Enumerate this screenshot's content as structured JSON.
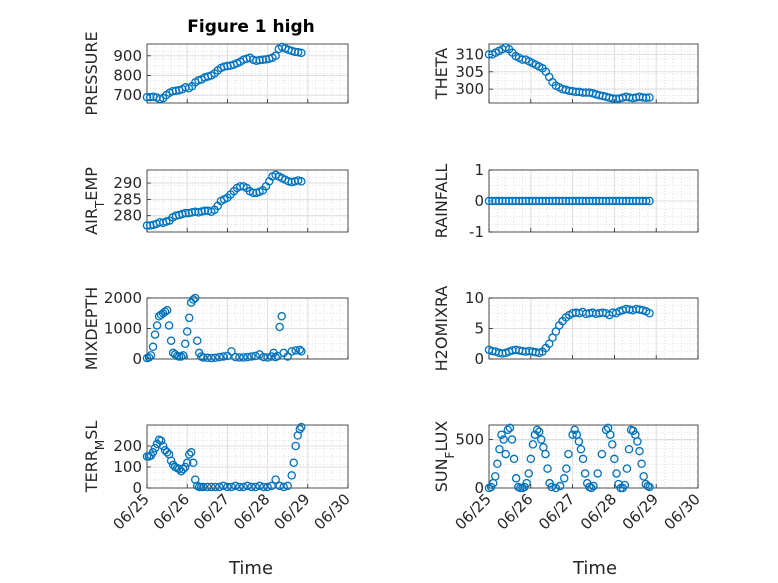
{
  "figure": {
    "title": "Figure 1 high",
    "xlabel": "Time"
  },
  "style": {
    "marker_color": "#0072BD",
    "grid_color": "#dfdfdf",
    "axis_color": "#262626"
  },
  "chart_data": [
    {
      "type": "scatter",
      "ylabel": "PRESSURE",
      "ylabel_sub": "",
      "ylim": [
        660,
        960
      ],
      "yticks": [
        700,
        800,
        900
      ],
      "xlim": [
        0,
        4
      ],
      "xticks": [
        "06/25",
        "06/26",
        "06/27",
        "06/28",
        "06/29",
        "06/30"
      ],
      "x": [
        0,
        0.08,
        0.16,
        0.24,
        0.32,
        0.4,
        0.48,
        0.56,
        0.64,
        0.72,
        0.8,
        0.88,
        0.96,
        1.04,
        1.12,
        1.2,
        1.28,
        1.36,
        1.44,
        1.52,
        1.6,
        1.68,
        1.76,
        1.84,
        1.92,
        2,
        2.08,
        2.16,
        2.24,
        2.32,
        2.4,
        2.48,
        2.56,
        2.64,
        2.72,
        2.8,
        2.88,
        2.96,
        3.04,
        3.12,
        3.2,
        3.28,
        3.36,
        3.44,
        3.52,
        3.6,
        3.68,
        3.76,
        3.84
      ],
      "y": [
        690,
        690,
        692,
        688,
        680,
        685,
        700,
        712,
        720,
        722,
        725,
        730,
        740,
        735,
        745,
        765,
        775,
        780,
        790,
        795,
        800,
        810,
        825,
        838,
        845,
        848,
        850,
        855,
        862,
        870,
        880,
        885,
        890,
        880,
        875,
        878,
        880,
        882,
        885,
        890,
        900,
        935,
        945,
        938,
        930,
        925,
        920,
        918,
        915
      ]
    },
    {
      "type": "scatter",
      "ylabel": "THETA",
      "ylabel_sub": "",
      "ylim": [
        296,
        313
      ],
      "yticks": [
        300,
        305,
        310
      ],
      "xlim": [
        0,
        4
      ],
      "xticks": [
        "06/25",
        "06/26",
        "06/27",
        "06/28",
        "06/29",
        "06/30"
      ],
      "x": [
        0,
        0.08,
        0.16,
        0.24,
        0.32,
        0.4,
        0.48,
        0.56,
        0.64,
        0.72,
        0.8,
        0.88,
        0.96,
        1.04,
        1.12,
        1.2,
        1.28,
        1.36,
        1.44,
        1.52,
        1.6,
        1.68,
        1.76,
        1.84,
        1.92,
        2,
        2.08,
        2.16,
        2.24,
        2.32,
        2.4,
        2.48,
        2.56,
        2.64,
        2.72,
        2.8,
        2.88,
        2.96,
        3.04,
        3.12,
        3.2,
        3.28,
        3.36,
        3.44,
        3.52,
        3.6,
        3.68,
        3.76,
        3.84
      ],
      "y": [
        310,
        310,
        310.5,
        311,
        311.5,
        312,
        311.5,
        310.5,
        309.5,
        309,
        308.5,
        308.5,
        308,
        307.5,
        307,
        306.5,
        306,
        305,
        303.5,
        302,
        301,
        300.5,
        300,
        299.8,
        299.5,
        299.4,
        299.2,
        299.2,
        299,
        299,
        299,
        298.8,
        298.5,
        298.2,
        298,
        297.8,
        297.5,
        297.3,
        297.2,
        297.3,
        297.5,
        297.8,
        297.6,
        297.4,
        297.6,
        297.8,
        297.6,
        297.5,
        297.6
      ]
    },
    {
      "type": "scatter",
      "ylabel": "AIR",
      "ylabel_sub": "T",
      "ylabel_suffix": "EMP",
      "ylim": [
        275,
        294
      ],
      "yticks": [
        280,
        285,
        290
      ],
      "xlim": [
        0,
        4
      ],
      "xticks": [
        "06/25",
        "06/26",
        "06/27",
        "06/28",
        "06/29",
        "06/30"
      ],
      "x": [
        0,
        0.08,
        0.16,
        0.24,
        0.32,
        0.4,
        0.48,
        0.56,
        0.64,
        0.72,
        0.8,
        0.88,
        0.96,
        1.04,
        1.12,
        1.2,
        1.28,
        1.36,
        1.44,
        1.52,
        1.6,
        1.68,
        1.76,
        1.84,
        1.92,
        2,
        2.08,
        2.16,
        2.24,
        2.32,
        2.4,
        2.48,
        2.56,
        2.64,
        2.72,
        2.8,
        2.88,
        2.96,
        3.04,
        3.12,
        3.2,
        3.28,
        3.36,
        3.44,
        3.52,
        3.6,
        3.68,
        3.76,
        3.84
      ],
      "y": [
        277,
        277,
        277.2,
        277.5,
        278,
        277.8,
        278.2,
        278.5,
        279.5,
        280,
        280.2,
        280.5,
        280.8,
        280.8,
        281,
        281.2,
        281,
        281.3,
        281.5,
        281.5,
        281.2,
        281.8,
        283,
        284.5,
        285,
        285.5,
        286.5,
        287.5,
        288.5,
        289,
        289,
        288.5,
        287.5,
        287,
        287,
        287.3,
        287.8,
        289,
        290.5,
        292,
        292.5,
        292,
        291.5,
        291,
        290.5,
        290.3,
        290.5,
        290.8,
        290.5
      ]
    },
    {
      "type": "scatter",
      "ylabel": "RAINFALL",
      "ylabel_sub": "",
      "ylim": [
        -1,
        1
      ],
      "yticks": [
        -1,
        0,
        1
      ],
      "xlim": [
        0,
        4
      ],
      "xticks": [
        "06/25",
        "06/26",
        "06/27",
        "06/28",
        "06/29",
        "06/30"
      ],
      "x": [
        0,
        0.08,
        0.16,
        0.24,
        0.32,
        0.4,
        0.48,
        0.56,
        0.64,
        0.72,
        0.8,
        0.88,
        0.96,
        1.04,
        1.12,
        1.2,
        1.28,
        1.36,
        1.44,
        1.52,
        1.6,
        1.68,
        1.76,
        1.84,
        1.92,
        2,
        2.08,
        2.16,
        2.24,
        2.32,
        2.4,
        2.48,
        2.56,
        2.64,
        2.72,
        2.8,
        2.88,
        2.96,
        3.04,
        3.12,
        3.2,
        3.28,
        3.36,
        3.44,
        3.52,
        3.6,
        3.68,
        3.76,
        3.84
      ],
      "y": [
        0,
        0,
        0,
        0,
        0,
        0,
        0,
        0,
        0,
        0,
        0,
        0,
        0,
        0,
        0,
        0,
        0,
        0,
        0,
        0,
        0,
        0,
        0,
        0,
        0,
        0,
        0,
        0,
        0,
        0,
        0,
        0,
        0,
        0,
        0,
        0,
        0,
        0,
        0,
        0,
        0,
        0,
        0,
        0,
        0,
        0,
        0,
        0,
        0
      ]
    },
    {
      "type": "scatter",
      "ylabel": "MIXDEPTH",
      "ylabel_sub": "",
      "ylim": [
        0,
        2000
      ],
      "yticks": [
        0,
        1000,
        2000
      ],
      "xlim": [
        0,
        4
      ],
      "xticks": [
        "06/25",
        "06/26",
        "06/27",
        "06/28",
        "06/29",
        "06/30"
      ],
      "x": [
        0,
        0.05,
        0.1,
        0.15,
        0.2,
        0.25,
        0.3,
        0.35,
        0.4,
        0.45,
        0.5,
        0.55,
        0.6,
        0.65,
        0.7,
        0.75,
        0.8,
        0.85,
        0.9,
        0.95,
        1,
        1.05,
        1.1,
        1.15,
        1.2,
        1.25,
        1.3,
        1.35,
        1.4,
        1.5,
        1.6,
        1.7,
        1.8,
        1.9,
        2,
        2.1,
        2.2,
        2.3,
        2.4,
        2.5,
        2.6,
        2.7,
        2.8,
        2.9,
        3,
        3.1,
        3.15,
        3.2,
        3.25,
        3.3,
        3.35,
        3.4,
        3.5,
        3.6,
        3.7,
        3.8,
        3.84
      ],
      "y": [
        30,
        50,
        120,
        400,
        800,
        1100,
        1400,
        1450,
        1500,
        1550,
        1600,
        1100,
        600,
        200,
        150,
        100,
        80,
        80,
        120,
        500,
        900,
        1350,
        1850,
        1950,
        2000,
        600,
        200,
        80,
        50,
        40,
        30,
        40,
        60,
        80,
        100,
        250,
        60,
        50,
        50,
        60,
        80,
        100,
        150,
        60,
        50,
        80,
        200,
        60,
        100,
        1050,
        1400,
        200,
        80,
        250,
        280,
        300,
        250
      ]
    },
    {
      "type": "scatter",
      "ylabel": "H2OMIXRA",
      "ylabel_sub": "",
      "ylim": [
        0,
        10
      ],
      "yticks": [
        0,
        5,
        10
      ],
      "xlim": [
        0,
        4
      ],
      "xticks": [
        "06/25",
        "06/26",
        "06/27",
        "06/28",
        "06/29",
        "06/30"
      ],
      "x": [
        0,
        0.08,
        0.16,
        0.24,
        0.32,
        0.4,
        0.48,
        0.56,
        0.64,
        0.72,
        0.8,
        0.88,
        0.96,
        1.04,
        1.12,
        1.2,
        1.28,
        1.36,
        1.44,
        1.52,
        1.6,
        1.68,
        1.76,
        1.84,
        1.92,
        2,
        2.08,
        2.16,
        2.24,
        2.32,
        2.4,
        2.48,
        2.56,
        2.64,
        2.72,
        2.8,
        2.88,
        2.96,
        3.04,
        3.12,
        3.2,
        3.28,
        3.36,
        3.44,
        3.52,
        3.6,
        3.68,
        3.76,
        3.84
      ],
      "y": [
        1.5,
        1.3,
        1.2,
        1,
        0.9,
        1,
        1.2,
        1.4,
        1.5,
        1.4,
        1.3,
        1.2,
        1.3,
        1.2,
        1.1,
        1,
        1.2,
        1.8,
        2.5,
        3.5,
        4.5,
        5.5,
        6.2,
        6.8,
        7.2,
        7.5,
        7.6,
        7.5,
        7.7,
        7.4,
        7.5,
        7.6,
        7.4,
        7.5,
        7.6,
        7.5,
        7.2,
        7.6,
        7.5,
        7.8,
        8,
        8.2,
        8.1,
        8,
        8.2,
        8.1,
        8,
        7.8,
        7.5
      ]
    },
    {
      "type": "scatter",
      "ylabel": "TERR",
      "ylabel_sub": "M",
      "ylabel_suffix": "SL",
      "ylim": [
        0,
        300
      ],
      "yticks": [
        0,
        100,
        200
      ],
      "xlim": [
        0,
        4
      ],
      "xticks": [
        "06/25",
        "06/26",
        "06/27",
        "06/28",
        "06/29",
        "06/30"
      ],
      "x": [
        0,
        0.05,
        0.1,
        0.15,
        0.2,
        0.25,
        0.3,
        0.35,
        0.4,
        0.45,
        0.5,
        0.55,
        0.6,
        0.65,
        0.7,
        0.75,
        0.8,
        0.85,
        0.9,
        0.95,
        1,
        1.05,
        1.1,
        1.15,
        1.2,
        1.25,
        1.3,
        1.35,
        1.4,
        1.5,
        1.6,
        1.7,
        1.8,
        1.9,
        2,
        2.1,
        2.2,
        2.3,
        2.4,
        2.5,
        2.6,
        2.7,
        2.8,
        2.9,
        3,
        3.1,
        3.2,
        3.3,
        3.4,
        3.5,
        3.6,
        3.65,
        3.7,
        3.75,
        3.8,
        3.84
      ],
      "y": [
        150,
        150,
        155,
        170,
        190,
        210,
        230,
        225,
        200,
        180,
        170,
        160,
        130,
        110,
        100,
        95,
        90,
        80,
        90,
        100,
        120,
        160,
        170,
        120,
        40,
        10,
        5,
        5,
        5,
        5,
        5,
        5,
        5,
        10,
        5,
        5,
        10,
        5,
        5,
        10,
        5,
        5,
        10,
        5,
        5,
        10,
        40,
        10,
        5,
        10,
        60,
        120,
        200,
        250,
        280,
        290
      ]
    },
    {
      "type": "scatter",
      "ylabel": "SUN",
      "ylabel_sub": "F",
      "ylabel_suffix": "LUX",
      "ylim": [
        0,
        650
      ],
      "yticks": [
        0,
        500
      ],
      "xlim": [
        0,
        4
      ],
      "xticks": [
        "06/25",
        "06/26",
        "06/27",
        "06/28",
        "06/29",
        "06/30"
      ],
      "x": [
        0,
        0.05,
        0.1,
        0.15,
        0.2,
        0.25,
        0.3,
        0.35,
        0.4,
        0.45,
        0.5,
        0.55,
        0.6,
        0.65,
        0.7,
        0.75,
        0.8,
        0.85,
        0.9,
        0.95,
        1,
        1.05,
        1.1,
        1.15,
        1.2,
        1.25,
        1.3,
        1.35,
        1.4,
        1.45,
        1.5,
        1.6,
        1.7,
        1.8,
        1.85,
        1.9,
        2,
        2.05,
        2.1,
        2.15,
        2.2,
        2.25,
        2.3,
        2.35,
        2.4,
        2.45,
        2.5,
        2.6,
        2.7,
        2.8,
        2.85,
        2.9,
        2.95,
        3,
        3.05,
        3.1,
        3.15,
        3.2,
        3.25,
        3.3,
        3.35,
        3.4,
        3.45,
        3.5,
        3.55,
        3.6,
        3.65,
        3.7,
        3.75,
        3.8,
        3.84
      ],
      "y": [
        0,
        10,
        50,
        120,
        250,
        400,
        550,
        500,
        350,
        600,
        620,
        500,
        300,
        100,
        10,
        0,
        0,
        10,
        50,
        150,
        300,
        450,
        550,
        600,
        580,
        500,
        420,
        350,
        200,
        50,
        10,
        0,
        20,
        100,
        200,
        350,
        550,
        600,
        550,
        480,
        400,
        300,
        150,
        50,
        10,
        0,
        20,
        150,
        350,
        600,
        620,
        550,
        450,
        300,
        150,
        40,
        0,
        0,
        30,
        200,
        400,
        600,
        590,
        550,
        480,
        380,
        250,
        120,
        40,
        20,
        10
      ]
    }
  ]
}
